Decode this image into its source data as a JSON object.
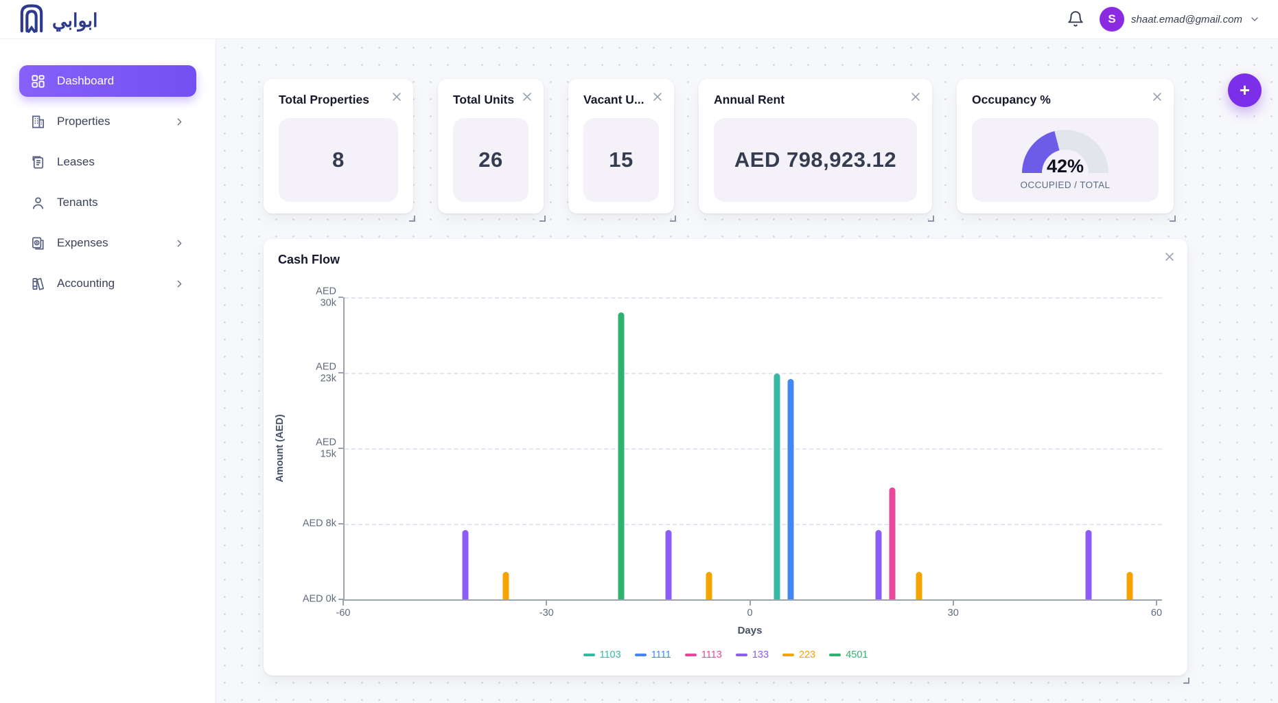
{
  "header": {
    "logo_text": "ابوابي",
    "email": "shaat.emad@gmail.com",
    "avatar_initial": "S"
  },
  "sidebar": {
    "items": [
      {
        "label": "Dashboard",
        "active": true,
        "chevron": false
      },
      {
        "label": "Properties",
        "active": false,
        "chevron": true
      },
      {
        "label": "Leases",
        "active": false,
        "chevron": false
      },
      {
        "label": "Tenants",
        "active": false,
        "chevron": false
      },
      {
        "label": "Expenses",
        "active": false,
        "chevron": true
      },
      {
        "label": "Accounting",
        "active": false,
        "chevron": true
      }
    ]
  },
  "fab": {
    "label": "+"
  },
  "stats": {
    "cards": [
      {
        "title": "Total Properties",
        "value": "8"
      },
      {
        "title": "Total Units",
        "value": "26"
      },
      {
        "title": "Vacant U...",
        "value": "15"
      },
      {
        "title": "Annual Rent",
        "value": "AED 798,923.12"
      }
    ],
    "occupancy": {
      "title": "Occupancy %",
      "percent": 42,
      "percent_label": "42%",
      "caption": "OCCUPIED / TOTAL"
    }
  },
  "chart_data": {
    "type": "bar",
    "title": "Cash Flow",
    "xlabel": "Days",
    "ylabel": "Amount (AED)",
    "xlim": [
      -60,
      60
    ],
    "ylim": [
      0,
      30000
    ],
    "x_ticks": [
      -60,
      -30,
      0,
      30,
      60
    ],
    "y_ticks": [
      {
        "value": 0,
        "label": "AED 0k"
      },
      {
        "value": 7500,
        "label": "AED 8k"
      },
      {
        "value": 15000,
        "label": "AED\n15k"
      },
      {
        "value": 22500,
        "label": "AED\n23k"
      },
      {
        "value": 30000,
        "label": "AED\n30k"
      }
    ],
    "grid": "horizontal-dashed",
    "legend_position": "bottom-center",
    "series": [
      {
        "name": "1103",
        "color": "#3ab7a4",
        "points": [
          {
            "x": 4,
            "y": 22400
          }
        ]
      },
      {
        "name": "1111",
        "color": "#4487f2",
        "points": [
          {
            "x": 6,
            "y": 21900
          }
        ]
      },
      {
        "name": "1113",
        "color": "#e8489c",
        "points": [
          {
            "x": 21,
            "y": 11100
          }
        ]
      },
      {
        "name": "133",
        "color": "#8b5cf6",
        "points": [
          {
            "x": -42,
            "y": 6900
          },
          {
            "x": -12,
            "y": 6900
          },
          {
            "x": 19,
            "y": 6900
          },
          {
            "x": 50,
            "y": 6900
          }
        ]
      },
      {
        "name": "223",
        "color": "#f5a300",
        "points": [
          {
            "x": -36,
            "y": 2700
          },
          {
            "x": -6,
            "y": 2700
          },
          {
            "x": 25,
            "y": 2700
          },
          {
            "x": 56,
            "y": 2700
          }
        ]
      },
      {
        "name": "4501",
        "color": "#2fb270",
        "points": [
          {
            "x": -19,
            "y": 28500
          }
        ]
      }
    ]
  },
  "colors": {
    "accent": "#7a57f7",
    "avatar": "#8a2be2",
    "fab": "#7c2fe8",
    "brand": "#2d3a8c",
    "gauge_fill": "#6c5ce7",
    "gauge_track": "#e2e5ec"
  }
}
